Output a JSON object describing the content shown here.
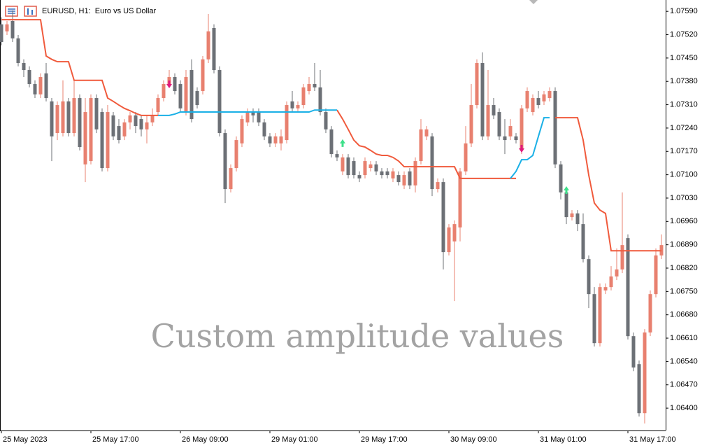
{
  "chart_data": {
    "type": "candlestick",
    "title": "EURUSD, H1:  Euro vs US Dollar",
    "annotation": "Custom amplitude values",
    "categories": [
      "25 May 2023",
      null,
      null,
      null,
      null,
      null,
      null,
      null,
      null,
      null,
      null,
      null,
      null,
      null,
      null,
      null,
      "25 May 17:00",
      null,
      null,
      null,
      null,
      null,
      null,
      null,
      null,
      null,
      null,
      null,
      null,
      null,
      null,
      null,
      "26 May 09:00",
      null,
      null,
      null,
      null,
      null,
      null,
      null,
      null,
      null,
      null,
      null,
      null,
      null,
      null,
      null,
      "29 May 01:00",
      null,
      null,
      null,
      null,
      null,
      null,
      null,
      null,
      null,
      null,
      null,
      null,
      null,
      null,
      null,
      "29 May 17:00",
      null,
      null,
      null,
      null,
      null,
      null,
      null,
      null,
      null,
      null,
      null,
      null,
      null,
      null,
      null,
      "30 May 09:00",
      null,
      null,
      null,
      null,
      null,
      null,
      null,
      null,
      null,
      null,
      null,
      null,
      null,
      null,
      null,
      "31 May 01:00",
      null,
      null,
      null,
      null,
      null,
      null,
      null,
      null,
      null,
      null,
      null,
      null,
      null,
      null,
      null,
      "31 May 17:00",
      null,
      null,
      null,
      null,
      null,
      null
    ],
    "open": [
      1.07551,
      1.0753,
      1.07561,
      1.07509,
      1.07435,
      1.07414,
      1.07372,
      1.07341,
      1.07404,
      1.0732,
      1.07225,
      1.07225,
      1.0732,
      1.07225,
      1.0733,
      1.07131,
      1.07141,
      1.0733,
      1.07288,
      1.0712,
      1.07278,
      1.07246,
      1.07215,
      1.07257,
      1.07278,
      1.07267,
      1.07236,
      1.07257,
      1.07288,
      1.0733,
      1.07372,
      1.07393,
      1.07372,
      1.07288,
      1.07414,
      1.07351,
      1.07351,
      1.07446,
      1.0754,
      1.07414,
      1.07225,
      1.07057,
      1.0712,
      1.07194,
      1.07257,
      1.07288,
      1.07288,
      1.07257,
      1.07215,
      1.07194,
      1.07194,
      1.07204,
      1.0732,
      1.07299,
      1.07309,
      1.07351,
      1.07372,
      1.07362,
      1.07288,
      1.07236,
      1.07162,
      1.0711,
      1.07152,
      1.07141,
      1.07099,
      1.07099,
      1.0712,
      1.07131,
      1.0711,
      1.0711,
      1.07089,
      1.07099,
      1.07068,
      1.0711,
      1.07068,
      1.07141,
      1.07215,
      1.07215,
      1.07057,
      1.07078,
      1.06868,
      1.069,
      1.06942,
      1.0711,
      1.07194,
      1.07309,
      1.07435,
      1.07215,
      1.07309,
      1.07288,
      1.07215,
      1.07215,
      1.07215,
      1.07173,
      1.07299,
      1.07288,
      1.0733,
      1.0732,
      1.0733,
      1.07351,
      1.07131,
      1.07047,
      1.06973,
      1.06984,
      1.06952,
      1.06847,
      1.06742,
      1.06595,
      1.06753,
      1.06763,
      1.06795,
      1.06816,
      1.0691,
      1.06616,
      1.06532,
      1.06385,
      1.06627,
      1.06742,
      1.06858
    ],
    "high": [
      1.07572,
      1.07561,
      1.07593,
      1.07519,
      1.07446,
      1.07425,
      1.07383,
      1.07404,
      1.07435,
      1.0733,
      1.0732,
      1.07383,
      1.0733,
      1.07383,
      1.07341,
      1.0733,
      1.07341,
      1.07341,
      1.07299,
      1.07309,
      1.07288,
      1.07267,
      1.07267,
      1.07288,
      1.07288,
      1.07278,
      1.07278,
      1.07299,
      1.07341,
      1.07383,
      1.07414,
      1.07404,
      1.07383,
      1.07414,
      1.07446,
      1.07362,
      1.07456,
      1.07582,
      1.07551,
      1.07425,
      1.07236,
      1.07131,
      1.07215,
      1.07278,
      1.07299,
      1.07299,
      1.07299,
      1.07267,
      1.07225,
      1.07225,
      1.07236,
      1.0732,
      1.07351,
      1.0732,
      1.07372,
      1.07393,
      1.07435,
      1.07414,
      1.07299,
      1.07246,
      1.07173,
      1.07162,
      1.07162,
      1.07152,
      1.0711,
      1.07152,
      1.07141,
      1.07141,
      1.0712,
      1.0712,
      1.0712,
      1.0711,
      1.0711,
      1.0712,
      1.07152,
      1.07267,
      1.07246,
      1.07225,
      1.07089,
      1.07089,
      1.06952,
      1.06963,
      1.0712,
      1.07246,
      1.07372,
      1.07446,
      1.07467,
      1.07414,
      1.0733,
      1.07299,
      1.07267,
      1.07267,
      1.07225,
      1.07309,
      1.07362,
      1.07341,
      1.07351,
      1.07351,
      1.07362,
      1.07362,
      1.07141,
      1.07057,
      1.06994,
      1.06994,
      1.06984,
      1.06858,
      1.06763,
      1.06774,
      1.06774,
      1.06826,
      1.06879,
      1.07047,
      1.06921,
      1.06627,
      1.06543,
      1.06637,
      1.06753,
      1.06879,
      1.06921
    ],
    "low": [
      1.07488,
      1.07519,
      1.07498,
      1.07425,
      1.07393,
      1.07362,
      1.0733,
      1.0733,
      1.0732,
      1.07141,
      1.07204,
      1.07215,
      1.07215,
      1.07215,
      1.07173,
      1.07078,
      1.07131,
      1.07225,
      1.0711,
      1.0711,
      1.07204,
      1.07194,
      1.07204,
      1.07236,
      1.07225,
      1.07215,
      1.07194,
      1.07246,
      1.07278,
      1.0732,
      1.07362,
      1.07341,
      1.07288,
      1.07278,
      1.07257,
      1.07299,
      1.07341,
      1.07435,
      1.07404,
      1.07215,
      1.07015,
      1.07047,
      1.0711,
      1.07183,
      1.07246,
      1.07257,
      1.07246,
      1.07204,
      1.07183,
      1.07183,
      1.07173,
      1.07194,
      1.07288,
      1.07288,
      1.07299,
      1.07341,
      1.07351,
      1.07278,
      1.07225,
      1.07152,
      1.07141,
      1.07099,
      1.07089,
      1.07089,
      1.07078,
      1.07089,
      1.0711,
      1.07099,
      1.07089,
      1.07089,
      1.07078,
      1.07068,
      1.07057,
      1.07057,
      1.07047,
      1.07131,
      1.07204,
      1.07036,
      1.07047,
      1.06816,
      1.06858,
      1.06721,
      1.069,
      1.07099,
      1.07183,
      1.07299,
      1.07204,
      1.07204,
      1.07267,
      1.07204,
      1.07162,
      1.07204,
      1.07194,
      1.07162,
      1.07288,
      1.07278,
      1.07299,
      1.07309,
      1.0732,
      1.0712,
      1.07026,
      1.06952,
      1.06963,
      1.06931,
      1.06837,
      1.067,
      1.06585,
      1.06585,
      1.06742,
      1.06753,
      1.06784,
      1.06805,
      1.06606,
      1.06511,
      1.06375,
      1.06354,
      1.06616,
      1.06732,
      1.06847
    ],
    "close": [
      1.07498,
      1.07551,
      1.07509,
      1.07435,
      1.07414,
      1.07372,
      1.07341,
      1.07393,
      1.0733,
      1.07215,
      1.07309,
      1.0732,
      1.07225,
      1.0733,
      1.07183,
      1.07288,
      1.0733,
      1.07236,
      1.0712,
      1.07288,
      1.07215,
      1.07204,
      1.07257,
      1.07278,
      1.07246,
      1.07236,
      1.07257,
      1.07278,
      1.0733,
      1.07372,
      1.07393,
      1.07351,
      1.07299,
      1.07393,
      1.07267,
      1.07309,
      1.07446,
      1.0753,
      1.07414,
      1.07225,
      1.07057,
      1.0712,
      1.07204,
      1.07267,
      1.07288,
      1.07278,
      1.07257,
      1.07215,
      1.07194,
      1.07215,
      1.07215,
      1.07309,
      1.07299,
      1.07309,
      1.07362,
      1.07372,
      1.07362,
      1.07288,
      1.07236,
      1.07162,
      1.07152,
      1.07152,
      1.07099,
      1.07099,
      1.07089,
      1.07141,
      1.07131,
      1.0711,
      1.07099,
      1.07099,
      1.0711,
      1.07078,
      1.07099,
      1.07068,
      1.07141,
      1.07236,
      1.07236,
      1.07057,
      1.07078,
      1.06868,
      1.06942,
      1.06952,
      1.0711,
      1.07194,
      1.07309,
      1.07435,
      1.07215,
      1.07309,
      1.07278,
      1.07215,
      1.07204,
      1.07246,
      1.07204,
      1.07299,
      1.07351,
      1.0733,
      1.07309,
      1.07341,
      1.07351,
      1.07131,
      1.07047,
      1.06973,
      1.06984,
      1.06952,
      1.06847,
      1.06742,
      1.06595,
      1.06763,
      1.06763,
      1.06795,
      1.06816,
      1.06889,
      1.06616,
      1.06522,
      1.06385,
      1.06627,
      1.06742,
      1.06858,
      1.06889
    ],
    "up_color": "#e8806f",
    "down_color": "#6c7076",
    "indicator_lines": [
      {
        "color": "#f05a3c",
        "values": [
          1.07565,
          1.07565,
          1.07565,
          1.07565,
          1.07565,
          1.07565,
          1.07565,
          1.07565,
          1.07456,
          1.07446,
          1.07439,
          1.07439,
          1.07439,
          1.07383,
          1.07383,
          1.07383,
          1.07383,
          1.07383,
          1.07383,
          1.0733,
          1.0732,
          1.07309,
          1.07299,
          1.07292,
          1.07284,
          1.07278,
          1.07278,
          1.07278,
          1.07278,
          null,
          null,
          null,
          null,
          null,
          null,
          null,
          null,
          null,
          null,
          null,
          null,
          null,
          null,
          null,
          null,
          null,
          null,
          null,
          null,
          null,
          null,
          null,
          null,
          null,
          null,
          null,
          null,
          null,
          null,
          null,
          1.07294,
          1.07267,
          1.07236,
          1.07204,
          1.07187,
          1.07183,
          1.07173,
          1.07162,
          1.07158,
          1.07158,
          1.07152,
          1.07141,
          1.07124,
          1.07124,
          1.07124,
          1.07124,
          1.07124,
          1.07124,
          1.07124,
          1.07124,
          1.07124,
          1.07124,
          1.07089,
          1.07089,
          1.07089,
          1.07089,
          1.07089,
          1.07089,
          1.07089,
          1.07089,
          1.07089,
          1.07089,
          1.07089,
          null,
          null,
          null,
          null,
          null,
          null,
          1.07271,
          1.07271,
          1.07271,
          1.07271,
          1.07271,
          1.07204,
          1.07099,
          1.07015,
          1.06994,
          1.06984,
          1.06872,
          1.06872,
          1.06872,
          1.06872,
          1.06872,
          1.06872,
          1.06872,
          1.06872,
          1.06872,
          1.06872
        ]
      },
      {
        "color": "#1ab0e6",
        "values": [
          null,
          null,
          null,
          null,
          null,
          null,
          null,
          null,
          null,
          null,
          null,
          null,
          null,
          null,
          null,
          null,
          null,
          null,
          null,
          null,
          null,
          null,
          null,
          null,
          null,
          null,
          null,
          null,
          1.07278,
          1.07278,
          1.07278,
          1.07282,
          1.07288,
          1.07288,
          1.07288,
          1.07288,
          1.07288,
          1.07288,
          1.07288,
          1.07288,
          1.07288,
          1.07288,
          1.07288,
          1.07288,
          1.07288,
          1.07288,
          1.07288,
          1.07288,
          1.07288,
          1.07288,
          1.07288,
          1.07288,
          1.07288,
          1.07288,
          1.07288,
          1.07288,
          1.07294,
          1.07294,
          1.07294,
          1.07294,
          1.07294,
          null,
          null,
          null,
          null,
          null,
          null,
          null,
          null,
          null,
          null,
          null,
          null,
          null,
          null,
          null,
          null,
          null,
          null,
          null,
          null,
          null,
          null,
          null,
          null,
          null,
          null,
          null,
          null,
          null,
          null,
          1.07089,
          1.0711,
          1.07145,
          1.07145,
          1.07158,
          1.07215,
          1.07271,
          1.07271,
          null,
          null,
          null,
          null,
          null,
          null,
          null,
          null,
          null,
          null,
          null,
          null,
          null,
          null,
          null,
          null,
          null,
          null,
          null
        ]
      }
    ],
    "signals": [
      {
        "index": 30,
        "value": 1.07372,
        "direction": "down",
        "color": "#e0197d"
      },
      {
        "index": 61,
        "value": 1.07194,
        "direction": "up",
        "color": "#3ee08a"
      },
      {
        "index": 93,
        "value": 1.07179,
        "direction": "down",
        "color": "#e0197d"
      },
      {
        "index": 101,
        "value": 1.07053,
        "direction": "up",
        "color": "#3ee08a"
      }
    ],
    "ylim": [
      1.06333,
      1.07624
    ],
    "yticks": [
      {
        "value": 1.0759,
        "label": "1.07590"
      },
      {
        "value": 1.0752,
        "label": "1.07520"
      },
      {
        "value": 1.0745,
        "label": "1.07450"
      },
      {
        "value": 1.0738,
        "label": "1.07380"
      },
      {
        "value": 1.0731,
        "label": "1.07310"
      },
      {
        "value": 1.0724,
        "label": "1.07240"
      },
      {
        "value": 1.0717,
        "label": "1.07170"
      },
      {
        "value": 1.071,
        "label": "1.07100"
      },
      {
        "value": 1.0703,
        "label": "1.07030"
      },
      {
        "value": 1.0696,
        "label": "1.06960"
      },
      {
        "value": 1.0689,
        "label": "1.06890"
      },
      {
        "value": 1.0682,
        "label": "1.06820"
      },
      {
        "value": 1.0675,
        "label": "1.06750"
      },
      {
        "value": 1.0668,
        "label": "1.06680"
      },
      {
        "value": 1.0661,
        "label": "1.06610"
      },
      {
        "value": 1.0654,
        "label": "1.06540"
      },
      {
        "value": 1.0647,
        "label": "1.06470"
      },
      {
        "value": 1.064,
        "label": "1.06400"
      }
    ],
    "grid": false
  }
}
